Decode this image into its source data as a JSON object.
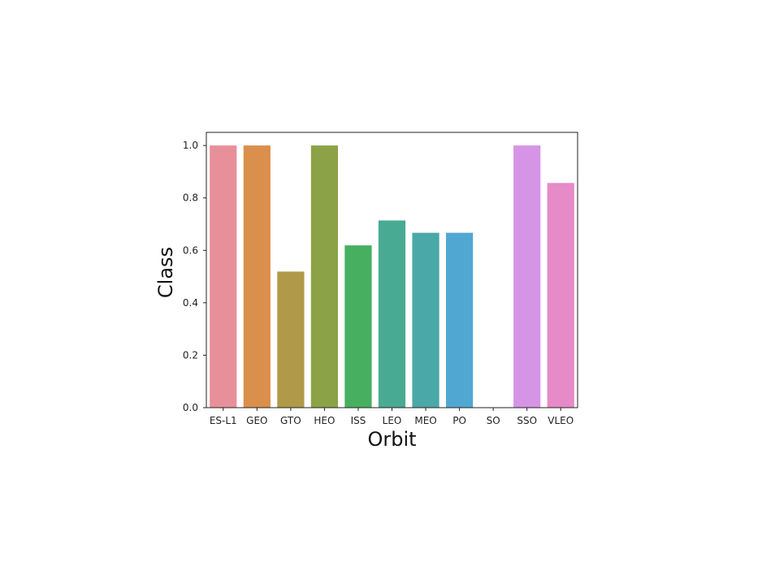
{
  "chart_data": {
    "type": "bar",
    "title": "",
    "xlabel": "Orbit",
    "ylabel": "Class",
    "categories": [
      "ES-L1",
      "GEO",
      "GTO",
      "HEO",
      "ISS",
      "LEO",
      "MEO",
      "PO",
      "SO",
      "SSO",
      "VLEO"
    ],
    "values": [
      1.0,
      1.0,
      0.519,
      1.0,
      0.619,
      0.714,
      0.667,
      0.667,
      0.0,
      1.0,
      0.857
    ],
    "colors": [
      "#e8909a",
      "#da8f4d",
      "#b09a49",
      "#8ba346",
      "#47b060",
      "#48aa92",
      "#4aa8a8",
      "#50a8d2",
      "#a9a4e8",
      "#d694e6",
      "#e68ac8"
    ],
    "ylim": [
      0,
      1.05
    ],
    "yticks": [
      0.0,
      0.2,
      0.4,
      0.6,
      0.8,
      1.0
    ],
    "ytick_labels": [
      "0.0",
      "0.2",
      "0.4",
      "0.6",
      "0.8",
      "1.0"
    ],
    "grid": false,
    "legend": "none"
  }
}
